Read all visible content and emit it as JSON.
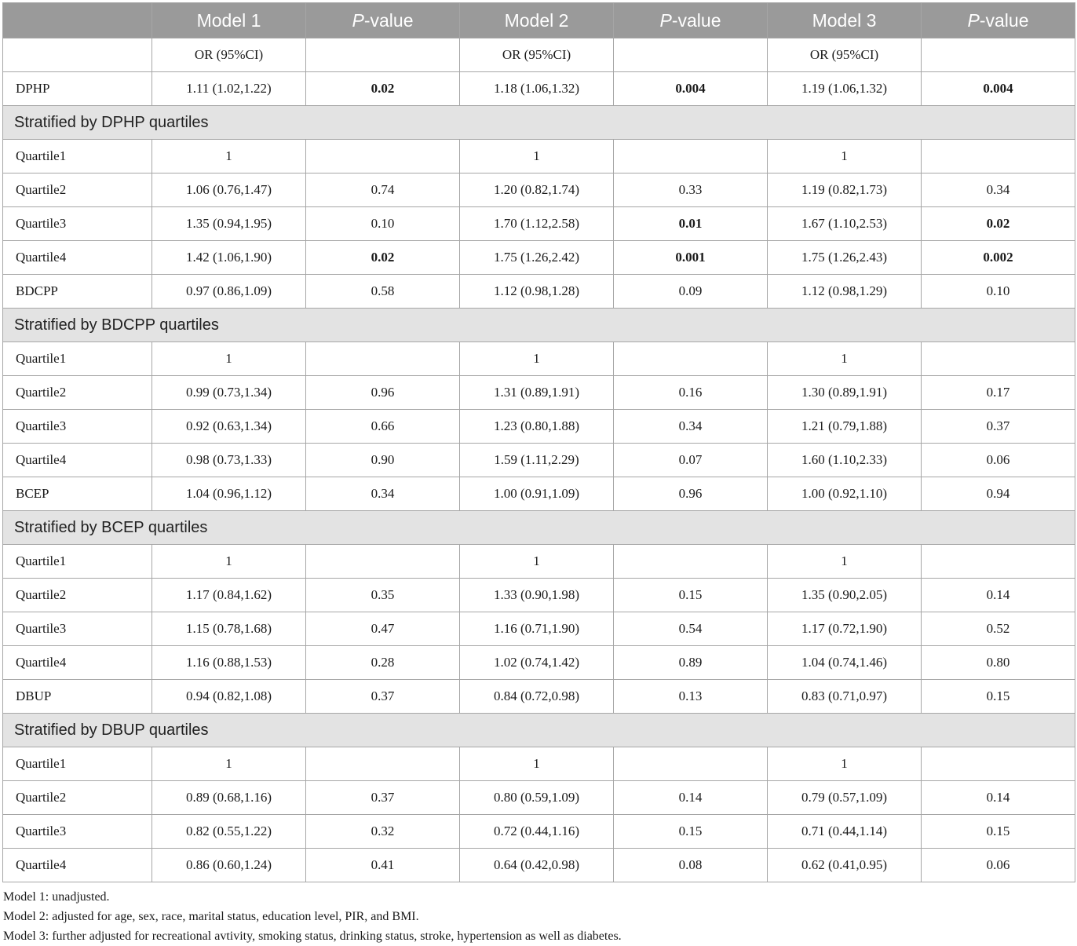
{
  "header": {
    "col0": "",
    "model1": "Model 1",
    "model2": "Model 2",
    "model3": "Model 3",
    "pvalue_prefix": "P",
    "pvalue_suffix": "-value"
  },
  "subheader": [
    "",
    "OR (95%CI)",
    "",
    "OR (95%CI)",
    "",
    "OR (95%CI)",
    ""
  ],
  "rows": [
    {
      "type": "data",
      "cells": [
        "DPHP",
        "1.11 (1.02,1.22)",
        "0.02",
        "1.18 (1.06,1.32)",
        "0.004",
        "1.19 (1.06,1.32)",
        "0.004"
      ],
      "bold": [
        2,
        4,
        6
      ]
    },
    {
      "type": "section",
      "label": "Stratified by DPHP quartiles"
    },
    {
      "type": "data",
      "cells": [
        "Quartile1",
        "1",
        "",
        "1",
        "",
        "1",
        ""
      ],
      "bold": []
    },
    {
      "type": "data",
      "cells": [
        "Quartile2",
        "1.06 (0.76,1.47)",
        "0.74",
        "1.20 (0.82,1.74)",
        "0.33",
        "1.19 (0.82,1.73)",
        "0.34"
      ],
      "bold": []
    },
    {
      "type": "data",
      "cells": [
        "Quartile3",
        "1.35 (0.94,1.95)",
        "0.10",
        "1.70 (1.12,2.58)",
        "0.01",
        "1.67 (1.10,2.53)",
        "0.02"
      ],
      "bold": [
        4,
        6
      ]
    },
    {
      "type": "data",
      "cells": [
        "Quartile4",
        "1.42 (1.06,1.90)",
        "0.02",
        "1.75 (1.26,2.42)",
        "0.001",
        "1.75 (1.26,2.43)",
        "0.002"
      ],
      "bold": [
        2,
        4,
        6
      ]
    },
    {
      "type": "data",
      "cells": [
        "BDCPP",
        "0.97 (0.86,1.09)",
        "0.58",
        "1.12 (0.98,1.28)",
        "0.09",
        "1.12 (0.98,1.29)",
        "0.10"
      ],
      "bold": []
    },
    {
      "type": "section",
      "label": "Stratified by BDCPP quartiles"
    },
    {
      "type": "data",
      "cells": [
        "Quartile1",
        "1",
        "",
        "1",
        "",
        "1",
        ""
      ],
      "bold": []
    },
    {
      "type": "data",
      "cells": [
        "Quartile2",
        "0.99 (0.73,1.34)",
        "0.96",
        "1.31 (0.89,1.91)",
        "0.16",
        "1.30 (0.89,1.91)",
        "0.17"
      ],
      "bold": []
    },
    {
      "type": "data",
      "cells": [
        "Quartile3",
        "0.92 (0.63,1.34)",
        "0.66",
        "1.23 (0.80,1.88)",
        "0.34",
        "1.21 (0.79,1.88)",
        "0.37"
      ],
      "bold": []
    },
    {
      "type": "data",
      "cells": [
        "Quartile4",
        "0.98 (0.73,1.33)",
        "0.90",
        "1.59 (1.11,2.29)",
        "0.07",
        "1.60 (1.10,2.33)",
        "0.06"
      ],
      "bold": []
    },
    {
      "type": "data",
      "cells": [
        "BCEP",
        "1.04 (0.96,1.12)",
        "0.34",
        "1.00 (0.91,1.09)",
        "0.96",
        "1.00 (0.92,1.10)",
        "0.94"
      ],
      "bold": []
    },
    {
      "type": "section",
      "label": "Stratified by BCEP quartiles"
    },
    {
      "type": "data",
      "cells": [
        "Quartile1",
        "1",
        "",
        "1",
        "",
        "1",
        ""
      ],
      "bold": []
    },
    {
      "type": "data",
      "cells": [
        "Quartile2",
        "1.17 (0.84,1.62)",
        "0.35",
        "1.33 (0.90,1.98)",
        "0.15",
        "1.35 (0.90,2.05)",
        "0.14"
      ],
      "bold": []
    },
    {
      "type": "data",
      "cells": [
        "Quartile3",
        "1.15 (0.78,1.68)",
        "0.47",
        "1.16 (0.71,1.90)",
        "0.54",
        "1.17 (0.72,1.90)",
        "0.52"
      ],
      "bold": []
    },
    {
      "type": "data",
      "cells": [
        "Quartile4",
        "1.16 (0.88,1.53)",
        "0.28",
        "1.02 (0.74,1.42)",
        "0.89",
        "1.04 (0.74,1.46)",
        "0.80"
      ],
      "bold": []
    },
    {
      "type": "data",
      "cells": [
        "DBUP",
        "0.94 (0.82,1.08)",
        "0.37",
        "0.84 (0.72,0.98)",
        "0.13",
        "0.83 (0.71,0.97)",
        "0.15"
      ],
      "bold": []
    },
    {
      "type": "section",
      "label": "Stratified by DBUP quartiles"
    },
    {
      "type": "data",
      "cells": [
        "Quartile1",
        "1",
        "",
        "1",
        "",
        "1",
        ""
      ],
      "bold": []
    },
    {
      "type": "data",
      "cells": [
        "Quartile2",
        "0.89 (0.68,1.16)",
        "0.37",
        "0.80 (0.59,1.09)",
        "0.14",
        "0.79 (0.57,1.09)",
        "0.14"
      ],
      "bold": []
    },
    {
      "type": "data",
      "cells": [
        "Quartile3",
        "0.82 (0.55,1.22)",
        "0.32",
        "0.72 (0.44,1.16)",
        "0.15",
        "0.71 (0.44,1.14)",
        "0.15"
      ],
      "bold": []
    },
    {
      "type": "data",
      "cells": [
        "Quartile4",
        "0.86 (0.60,1.24)",
        "0.41",
        "0.64 (0.42,0.98)",
        "0.08",
        "0.62 (0.41,0.95)",
        "0.06"
      ],
      "bold": []
    }
  ],
  "notes": [
    "Model 1: unadjusted.",
    "Model 2: adjusted for age, sex, race, marital status, education level, PIR, and BMI.",
    "Model 3: further adjusted for recreational avtivity, smoking status, drinking status, stroke, hypertension as well as diabetes."
  ],
  "colors": {
    "header_bg": "#9a9a9a",
    "section_bg": "#e3e3e3",
    "border": "#a6a6a6"
  }
}
